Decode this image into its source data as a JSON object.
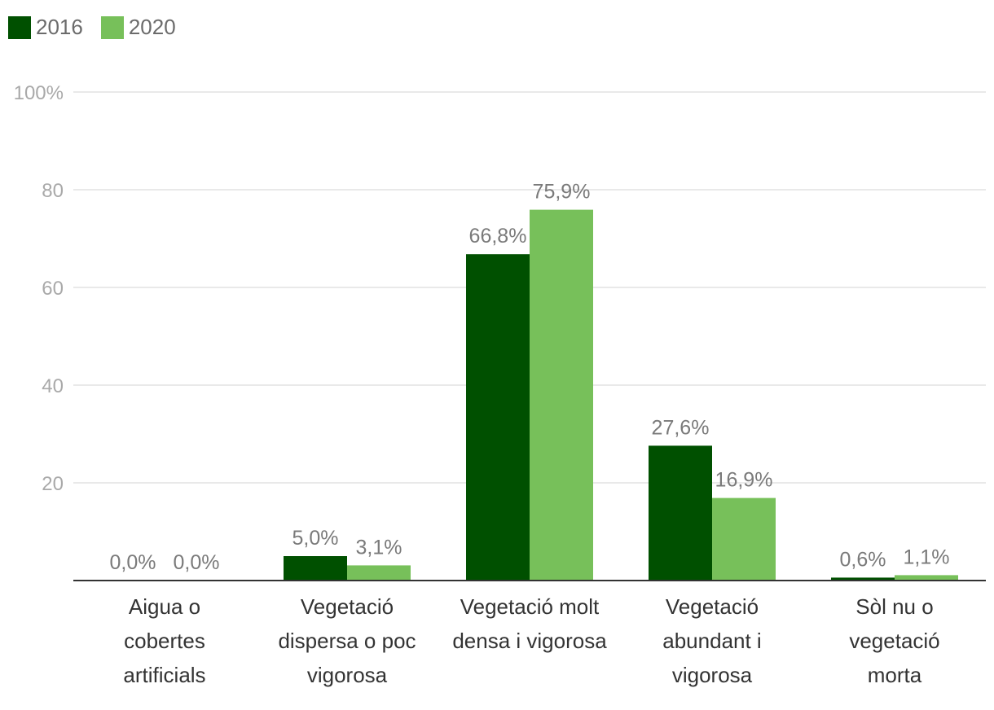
{
  "chart_data": {
    "type": "bar",
    "categories": [
      [
        "Aigua o",
        "cobertes",
        "artificials"
      ],
      [
        "Vegetació",
        "dispersa o poc",
        "vigorosa"
      ],
      [
        "Vegetació molt",
        "densa i vigorosa"
      ],
      [
        "Vegetació",
        "abundant i",
        "vigorosa"
      ],
      [
        "Sòl nu o",
        "vegetació",
        "morta"
      ]
    ],
    "series": [
      {
        "name": "2016",
        "color": "#005000",
        "values": [
          0.0,
          5.0,
          66.8,
          27.6,
          0.6
        ],
        "labels": [
          "0,0%",
          "5,0%",
          "66,8%",
          "27,6%",
          "0,6%"
        ]
      },
      {
        "name": "2020",
        "color": "#77c05a",
        "values": [
          0.0,
          3.1,
          75.9,
          16.9,
          1.1
        ],
        "labels": [
          "0,0%",
          "3,1%",
          "75,9%",
          "16,9%",
          "1,1%"
        ]
      }
    ],
    "yticks": [
      {
        "value": 20,
        "label": "20"
      },
      {
        "value": 40,
        "label": "40"
      },
      {
        "value": 60,
        "label": "60"
      },
      {
        "value": 80,
        "label": "80"
      },
      {
        "value": 100,
        "label": "100%"
      }
    ],
    "ylim": [
      0,
      100
    ],
    "grid": true,
    "legend": "top-left"
  }
}
